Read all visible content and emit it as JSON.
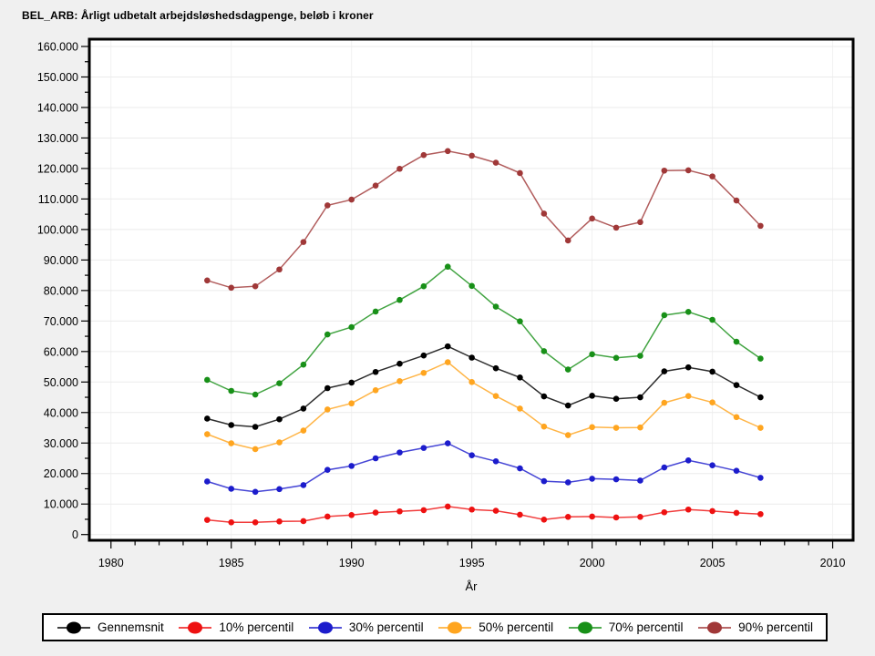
{
  "title": "BEL_ARB: Årligt udbetalt arbejdsløshedsdagpenge, beløb i kroner",
  "chart_data": {
    "type": "line",
    "title": "BEL_ARB: Årligt udbetalt arbejdsløshedsdagpenge, beløb i kroner",
    "xlabel": "År",
    "ylabel": "",
    "grid": "horizontal major gridlines (light gray), faint vertical gridlines at 5-year majors",
    "legend_position": "bottom",
    "xlim": [
      1979.1,
      2010.85
    ],
    "ylim": [
      0,
      160000
    ],
    "x_major_ticks": [
      1980,
      1985,
      1990,
      1995,
      2000,
      2005,
      2010
    ],
    "x_tick_labels": [
      "1980",
      "1985",
      "1990",
      "1995",
      "2000",
      "2005",
      "2010"
    ],
    "x_minor_step": 1,
    "y_major_step": 10000,
    "y_minor_step": 5000,
    "y_tick_labels": [
      "0",
      "10.000",
      "20.000",
      "30.000",
      "40.000",
      "50.000",
      "60.000",
      "70.000",
      "80.000",
      "90.000",
      "100.000",
      "110.000",
      "120.000",
      "130.000",
      "140.000",
      "150.000",
      "160.000"
    ],
    "x": [
      1984,
      1985,
      1986,
      1987,
      1988,
      1989,
      1990,
      1991,
      1992,
      1993,
      1994,
      1995,
      1996,
      1997,
      1998,
      1999,
      2000,
      2001,
      2002,
      2003,
      2004,
      2005,
      2006,
      2007
    ],
    "series": [
      {
        "name": "Gennemsnit",
        "color": "#000000",
        "values": [
          38000,
          35900,
          35300,
          37800,
          41300,
          48000,
          49800,
          53300,
          56000,
          58700,
          61700,
          58000,
          54500,
          51500,
          45300,
          42300,
          45500,
          44500,
          45000,
          53500,
          54800,
          53400,
          49000,
          45000
        ]
      },
      {
        "name": "10% percentil",
        "color": "#ee1111",
        "values": [
          4800,
          4000,
          4000,
          4300,
          4400,
          5900,
          6400,
          7200,
          7600,
          8000,
          9200,
          8200,
          7800,
          6500,
          4900,
          5800,
          5900,
          5600,
          5800,
          7300,
          8200,
          7700,
          7100,
          6700
        ]
      },
      {
        "name": "30% percentil",
        "color": "#1c1ccc",
        "values": [
          17400,
          15000,
          14000,
          14900,
          16200,
          21200,
          22500,
          25000,
          26900,
          28400,
          29900,
          26000,
          24000,
          21700,
          17500,
          17100,
          18300,
          18100,
          17700,
          22000,
          24300,
          22700,
          20900,
          18600
        ]
      },
      {
        "name": "50% percentil",
        "color": "#ffa51f",
        "values": [
          32900,
          29900,
          28000,
          30200,
          34100,
          41000,
          43000,
          47300,
          50300,
          53000,
          56500,
          50000,
          45400,
          41300,
          35400,
          32600,
          35200,
          35000,
          35100,
          43200,
          45400,
          43300,
          38500,
          35000
        ]
      },
      {
        "name": "70% percentil",
        "color": "#189018",
        "values": [
          50700,
          47100,
          45900,
          49600,
          55700,
          65600,
          68000,
          73100,
          76900,
          81400,
          87800,
          81500,
          74700,
          69900,
          60100,
          54100,
          59100,
          57900,
          58600,
          71900,
          73000,
          70400,
          63200,
          57700
        ]
      },
      {
        "name": "90% percentil",
        "color": "#a03838",
        "values": [
          83300,
          80900,
          81400,
          86900,
          95900,
          107900,
          109800,
          114400,
          119900,
          124400,
          125700,
          124200,
          121900,
          118500,
          105200,
          96400,
          103600,
          100600,
          102400,
          119300,
          119400,
          117400,
          109500,
          101200
        ]
      }
    ],
    "colors": {
      "page_background": "#f0f0f0",
      "plot_background": "#ffffff",
      "frame": "#000000",
      "h_gridline": "#ebebeb",
      "v_gridline": "#f1f1f1"
    }
  }
}
